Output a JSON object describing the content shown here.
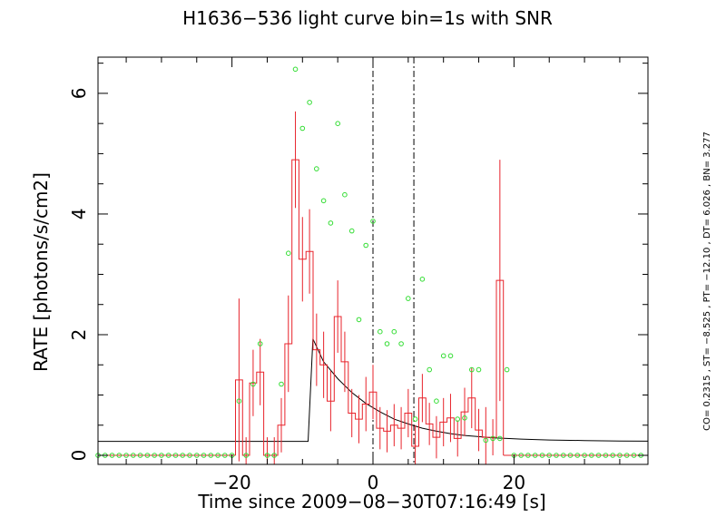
{
  "chart_data": {
    "type": "line",
    "title": "H1636−536 light curve bin=1s  with SNR",
    "xlabel": "Time since 2009−08−30T07:16:49 [s]",
    "ylabel": "RATE [photons/s/cm2]",
    "xlim": [
      -39,
      39
    ],
    "ylim": [
      -0.15,
      6.6
    ],
    "x_ticks": [
      {
        "value": -20,
        "label": "−20"
      },
      {
        "value": 0,
        "label": "0"
      },
      {
        "value": 20,
        "label": "20"
      }
    ],
    "y_ticks": [
      {
        "value": 0,
        "label": "0"
      },
      {
        "value": 2,
        "label": "2"
      },
      {
        "value": 4,
        "label": "4"
      },
      {
        "value": 6,
        "label": "6"
      }
    ],
    "vlines": [
      0,
      5.8
    ],
    "fit_parameters": "CO= 0.2315    , ST= −8.525    , PT= −12.10    , DT=  6.026    , BN=  3.277",
    "colors": {
      "rate": "#e8232b",
      "snr": "#33dd33",
      "model": "#000000",
      "frame": "#000000"
    },
    "series": [
      {
        "kind": "histogram_with_errors",
        "x": [
          -19,
          -18,
          -17,
          -16,
          -15,
          -14,
          -13,
          -12,
          -11,
          -10,
          -9,
          -8,
          -7,
          -6,
          -5,
          -4,
          -3,
          -2,
          -1,
          0,
          1,
          2,
          3,
          4,
          5,
          6,
          7,
          8,
          9,
          10,
          11,
          12,
          13,
          14,
          15,
          16,
          17,
          18
        ],
        "values": [
          1.25,
          0,
          1.2,
          1.38,
          0,
          0,
          0.5,
          1.85,
          4.9,
          3.25,
          3.38,
          1.75,
          1.5,
          0.9,
          2.3,
          1.55,
          0.7,
          0.6,
          0.85,
          1.05,
          0.45,
          0.4,
          0.5,
          0.45,
          0.7,
          0.15,
          0.95,
          0.52,
          0.3,
          0.55,
          0.62,
          0.28,
          0.72,
          0.95,
          0.42,
          0.3,
          0.3,
          2.9
        ],
        "errors": [
          1.35,
          0.3,
          0.55,
          0.55,
          0.3,
          0.3,
          0.45,
          0.8,
          0.8,
          0.7,
          0.7,
          0.6,
          0.55,
          0.5,
          0.6,
          0.5,
          0.4,
          0.4,
          0.45,
          0.45,
          0.35,
          0.35,
          0.35,
          0.35,
          0.4,
          0.35,
          0.4,
          0.35,
          0.35,
          0.4,
          0.4,
          0.3,
          0.4,
          0.5,
          0.35,
          0.5,
          0.3,
          2.0
        ]
      },
      {
        "kind": "snr_points",
        "x": [
          -39,
          -38,
          -37,
          -36,
          -35,
          -34,
          -33,
          -32,
          -31,
          -30,
          -29,
          -28,
          -27,
          -26,
          -25,
          -24,
          -23,
          -22,
          -21,
          -20,
          -19,
          -18,
          -17,
          -16,
          -15,
          -14,
          -13,
          -12,
          -11,
          -10,
          -9,
          -8,
          -7,
          -6,
          -5,
          -4,
          -3,
          -2,
          -1,
          0,
          1,
          2,
          3,
          4,
          5,
          6,
          7,
          8,
          9,
          10,
          11,
          12,
          13,
          14,
          15,
          16,
          17,
          18,
          19,
          20,
          21,
          22,
          23,
          24,
          25,
          26,
          27,
          28,
          29,
          30,
          31,
          32,
          33,
          34,
          35,
          36,
          37,
          38
        ],
        "values": [
          0,
          0,
          0,
          0,
          0,
          0,
          0,
          0,
          0,
          0,
          0,
          0,
          0,
          0,
          0,
          0,
          0,
          0,
          0,
          0,
          0.9,
          0,
          1.18,
          1.85,
          0,
          0,
          1.18,
          3.35,
          6.4,
          5.42,
          5.85,
          4.75,
          4.22,
          3.85,
          5.5,
          4.32,
          3.72,
          2.25,
          3.48,
          3.88,
          2.05,
          1.85,
          2.05,
          1.85,
          2.6,
          0.6,
          2.92,
          1.42,
          0.9,
          1.65,
          1.65,
          0.6,
          0.62,
          1.42,
          1.42,
          0.25,
          0.28,
          0.28,
          1.42,
          0,
          0,
          0,
          0,
          0,
          0,
          0,
          0,
          0,
          0,
          0,
          0,
          0,
          0,
          0,
          0,
          0,
          0,
          0
        ]
      },
      {
        "kind": "model",
        "x": [
          -39,
          -9.2,
          -8.525,
          -7,
          -5,
          -3,
          -1,
          1,
          3,
          5,
          7,
          9,
          11,
          13,
          15,
          17,
          19,
          21,
          25,
          30,
          35,
          39
        ],
        "values": [
          0.2315,
          0.2315,
          1.93,
          1.55,
          1.27,
          1.04,
          0.86,
          0.72,
          0.6,
          0.52,
          0.45,
          0.4,
          0.36,
          0.33,
          0.31,
          0.29,
          0.28,
          0.27,
          0.255,
          0.245,
          0.238,
          0.235
        ]
      }
    ]
  }
}
